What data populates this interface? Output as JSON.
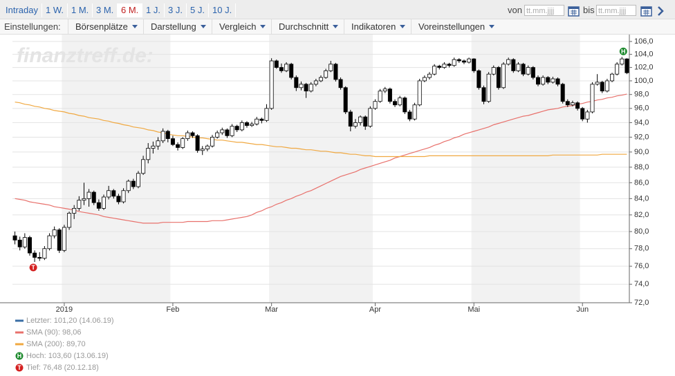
{
  "toolbar": {
    "ranges": [
      "Intraday",
      "1 W.",
      "1 M.",
      "3 M.",
      "6 M.",
      "1 J.",
      "3 J.",
      "5 J.",
      "10 J."
    ],
    "active_range_index": 4,
    "from_label": "von",
    "to_label": "bis",
    "date_placeholder": "tt.mm.jjjj",
    "settings_label": "Einstellungen:",
    "menus": [
      "Börsenplätze",
      "Darstellung",
      "Vergleich",
      "Durchschnitt",
      "Indikatoren",
      "Voreinstellungen"
    ]
  },
  "chart_data": {
    "type": "candlestick",
    "watermark": "finanztreff.de:",
    "log": true,
    "grid": true,
    "up_color": "#ffffff",
    "down_color": "#000000",
    "shade_color": "#f2f2f2",
    "ylim": [
      72,
      106
    ],
    "yticks": [
      {
        "value": 72,
        "label": "72,0"
      },
      {
        "value": 74,
        "label": "74,0"
      },
      {
        "value": 76,
        "label": "76,0"
      },
      {
        "value": 78,
        "label": "78,0"
      },
      {
        "value": 80,
        "label": "80,0"
      },
      {
        "value": 82,
        "label": "82,0"
      },
      {
        "value": 84,
        "label": "84,0"
      },
      {
        "value": 86,
        "label": "86,0"
      },
      {
        "value": 88,
        "label": "88,0"
      },
      {
        "value": 90,
        "label": "90,0"
      },
      {
        "value": 92,
        "label": "92,0"
      },
      {
        "value": 94,
        "label": "94,0"
      },
      {
        "value": 96,
        "label": "96,0"
      },
      {
        "value": 98,
        "label": "98,0"
      },
      {
        "value": 100,
        "label": "100,0"
      },
      {
        "value": 102,
        "label": "102,0"
      },
      {
        "value": 104,
        "label": "104,0"
      },
      {
        "value": 106,
        "label": "106,0"
      }
    ],
    "categories": [
      null,
      null,
      null,
      null,
      null,
      null,
      null,
      null,
      null,
      null,
      "2019",
      null,
      null,
      null,
      null,
      null,
      null,
      null,
      null,
      null,
      null,
      null,
      null,
      null,
      null,
      null,
      null,
      null,
      null,
      null,
      null,
      null,
      "Feb",
      null,
      null,
      null,
      null,
      null,
      null,
      null,
      null,
      null,
      null,
      null,
      null,
      null,
      null,
      null,
      null,
      null,
      null,
      null,
      "Mar",
      null,
      null,
      null,
      null,
      null,
      null,
      null,
      null,
      null,
      null,
      null,
      null,
      null,
      null,
      null,
      null,
      null,
      null,
      null,
      null,
      "Apr",
      null,
      null,
      null,
      null,
      null,
      null,
      null,
      null,
      null,
      null,
      null,
      null,
      null,
      null,
      null,
      null,
      null,
      null,
      null,
      "Mai",
      null,
      null,
      null,
      null,
      null,
      null,
      null,
      null,
      null,
      null,
      null,
      null,
      null,
      null,
      null,
      null,
      null,
      null,
      null,
      null,
      null,
      "Jun",
      null,
      null,
      null,
      null,
      null,
      null,
      null,
      null,
      null
    ],
    "ohlc": [
      [
        79.5,
        80,
        78.5,
        79.0
      ],
      [
        79.0,
        79.4,
        77.8,
        78.2
      ],
      [
        78.2,
        79.8,
        78.0,
        79.3
      ],
      [
        79.3,
        79.5,
        77.2,
        77.5
      ],
      [
        77.5,
        77.8,
        76.48,
        77.0
      ],
      [
        77.0,
        77.6,
        76.6,
        76.9
      ],
      [
        76.9,
        78.3,
        76.7,
        78.0
      ],
      [
        78.0,
        79.8,
        77.8,
        79.5
      ],
      [
        79.5,
        80.6,
        79.2,
        80.2
      ],
      [
        80.2,
        80.4,
        77.5,
        77.8
      ],
      [
        77.8,
        80.8,
        77.6,
        80.5
      ],
      [
        80.5,
        82.4,
        80.2,
        82.2
      ],
      [
        82.2,
        83.2,
        81.5,
        82.8
      ],
      [
        82.8,
        84.3,
        82.5,
        83.8
      ],
      [
        83.8,
        86.0,
        83.2,
        84.0
      ],
      [
        84.0,
        85.2,
        83.0,
        84.8
      ],
      [
        84.8,
        85.0,
        83.2,
        83.5
      ],
      [
        83.5,
        83.9,
        82.5,
        82.8
      ],
      [
        82.8,
        84.5,
        82.6,
        84.2
      ],
      [
        84.2,
        85.6,
        83.9,
        85.0
      ],
      [
        85.0,
        85.2,
        84.0,
        84.3
      ],
      [
        84.3,
        84.6,
        83.3,
        83.6
      ],
      [
        83.6,
        85.3,
        83.4,
        85.0
      ],
      [
        85.0,
        86.4,
        84.7,
        86.2
      ],
      [
        86.2,
        86.5,
        85.2,
        85.5
      ],
      [
        85.5,
        87.5,
        85.3,
        87.2
      ],
      [
        87.2,
        89.5,
        87.0,
        89.0
      ],
      [
        89.0,
        91.2,
        88.5,
        90.5
      ],
      [
        90.5,
        91.4,
        89.8,
        90.8
      ],
      [
        90.8,
        92.0,
        90.3,
        91.5
      ],
      [
        91.5,
        93.2,
        91.2,
        92.8
      ],
      [
        92.8,
        93.0,
        91.3,
        91.8
      ],
      [
        91.8,
        92.2,
        90.8,
        91.0
      ],
      [
        91.0,
        91.3,
        90.2,
        90.6
      ],
      [
        90.6,
        92.0,
        90.4,
        91.8
      ],
      [
        91.8,
        92.9,
        91.5,
        92.6
      ],
      [
        92.6,
        92.8,
        91.9,
        92.2
      ],
      [
        92.2,
        92.4,
        89.9,
        90.2
      ],
      [
        90.2,
        90.8,
        89.6,
        90.4
      ],
      [
        90.4,
        91.0,
        90.1,
        90.8
      ],
      [
        90.8,
        92.3,
        90.6,
        92.0
      ],
      [
        92.0,
        92.9,
        91.8,
        92.6
      ],
      [
        92.6,
        93.3,
        92.3,
        93.0
      ],
      [
        93.0,
        93.2,
        91.9,
        92.2
      ],
      [
        92.2,
        93.8,
        92.0,
        93.5
      ],
      [
        93.5,
        93.7,
        92.7,
        93.0
      ],
      [
        93.0,
        94.3,
        92.8,
        94.0
      ],
      [
        94.0,
        94.2,
        93.3,
        93.6
      ],
      [
        93.6,
        94.1,
        93.4,
        93.8
      ],
      [
        93.8,
        94.8,
        93.6,
        94.5
      ],
      [
        94.5,
        94.7,
        93.9,
        94.3
      ],
      [
        94.3,
        96.6,
        94.1,
        96.0
      ],
      [
        96.0,
        103.4,
        95.8,
        103.0
      ],
      [
        103.0,
        103.2,
        101.8,
        102.0
      ],
      [
        102.0,
        102.6,
        101.2,
        101.5
      ],
      [
        101.5,
        102.8,
        101.3,
        102.5
      ],
      [
        102.5,
        102.7,
        100.2,
        100.5
      ],
      [
        100.5,
        100.8,
        98.5,
        99.0
      ],
      [
        99.0,
        99.9,
        98.6,
        99.5
      ],
      [
        99.5,
        99.7,
        97.5,
        98.5
      ],
      [
        98.5,
        99.8,
        98.3,
        99.5
      ],
      [
        99.5,
        100.3,
        99.2,
        100.0
      ],
      [
        100.0,
        100.8,
        99.8,
        100.5
      ],
      [
        100.5,
        101.8,
        100.3,
        101.5
      ],
      [
        101.5,
        103.0,
        101.3,
        102.5
      ],
      [
        102.5,
        102.7,
        99.9,
        100.2
      ],
      [
        100.2,
        100.5,
        98.7,
        99.0
      ],
      [
        99.0,
        99.2,
        95.2,
        95.5
      ],
      [
        95.5,
        95.8,
        92.8,
        93.5
      ],
      [
        93.5,
        94.5,
        93.2,
        94.0
      ],
      [
        94.0,
        95.0,
        93.6,
        94.8
      ],
      [
        94.8,
        95.0,
        93.0,
        93.5
      ],
      [
        93.5,
        96.3,
        93.3,
        96.0
      ],
      [
        96.0,
        97.3,
        95.8,
        97.0
      ],
      [
        97.0,
        98.8,
        96.8,
        98.5
      ],
      [
        98.5,
        99.1,
        98.2,
        98.8
      ],
      [
        98.8,
        99.0,
        96.7,
        97.0
      ],
      [
        97.0,
        97.3,
        96.2,
        96.5
      ],
      [
        96.5,
        97.8,
        96.3,
        97.5
      ],
      [
        97.5,
        97.7,
        95.2,
        95.5
      ],
      [
        95.5,
        95.8,
        94.2,
        94.5
      ],
      [
        94.5,
        96.8,
        94.3,
        96.5
      ],
      [
        96.5,
        100.3,
        96.3,
        100.0
      ],
      [
        100.0,
        100.8,
        99.8,
        100.5
      ],
      [
        100.5,
        101.3,
        100.2,
        101.0
      ],
      [
        101.0,
        102.5,
        100.8,
        102.2
      ],
      [
        102.2,
        102.4,
        101.7,
        102.0
      ],
      [
        102.0,
        102.8,
        101.8,
        102.5
      ],
      [
        102.5,
        102.7,
        102.0,
        102.3
      ],
      [
        102.3,
        103.5,
        102.1,
        103.2
      ],
      [
        103.2,
        103.4,
        102.7,
        103.0
      ],
      [
        103.0,
        103.2,
        102.5,
        102.8
      ],
      [
        102.8,
        103.5,
        102.6,
        103.3
      ],
      [
        103.3,
        103.4,
        101.2,
        101.5
      ],
      [
        101.5,
        101.7,
        98.7,
        99.0
      ],
      [
        99.0,
        99.3,
        96.6,
        97.0
      ],
      [
        97.0,
        101.3,
        96.8,
        101.0
      ],
      [
        101.0,
        102.3,
        100.8,
        102.0
      ],
      [
        102.0,
        102.2,
        98.7,
        99.0
      ],
      [
        99.0,
        102.8,
        98.8,
        102.5
      ],
      [
        102.5,
        103.5,
        102.3,
        103.2
      ],
      [
        103.2,
        103.4,
        101.2,
        101.5
      ],
      [
        101.5,
        102.8,
        101.3,
        102.5
      ],
      [
        102.5,
        102.7,
        100.7,
        101.0
      ],
      [
        101.0,
        102.3,
        100.8,
        102.0
      ],
      [
        102.0,
        102.2,
        100.2,
        100.5
      ],
      [
        100.5,
        100.8,
        99.2,
        99.5
      ],
      [
        99.5,
        100.8,
        99.3,
        100.5
      ],
      [
        100.5,
        100.7,
        99.5,
        99.8
      ],
      [
        99.8,
        100.6,
        99.6,
        100.3
      ],
      [
        100.3,
        100.5,
        99.2,
        99.5
      ],
      [
        99.5,
        99.7,
        96.7,
        97.0
      ],
      [
        97.0,
        97.3,
        96.2,
        96.5
      ],
      [
        96.5,
        97.1,
        96.3,
        96.8
      ],
      [
        96.8,
        97.0,
        95.7,
        96.0
      ],
      [
        96.0,
        96.2,
        94.2,
        94.5
      ],
      [
        94.5,
        95.8,
        94.0,
        95.5
      ],
      [
        95.5,
        99.8,
        95.3,
        99.5
      ],
      [
        99.5,
        101.0,
        99.3,
        99.8
      ],
      [
        99.8,
        100.0,
        98.2,
        98.5
      ],
      [
        98.5,
        100.3,
        98.3,
        100.0
      ],
      [
        100.0,
        101.2,
        99.8,
        101.0
      ],
      [
        101.0,
        102.8,
        100.8,
        102.5
      ],
      [
        102.5,
        103.6,
        102.3,
        103.3
      ],
      [
        103.3,
        103.4,
        101.0,
        101.2
      ]
    ],
    "series": [
      {
        "name": "SMA (90): 98,06",
        "color": "#e8706b",
        "values": [
          84.0,
          83.9,
          83.8,
          83.6,
          83.5,
          83.4,
          83.3,
          83.2,
          83.0,
          82.9,
          82.8,
          82.7,
          82.6,
          82.4,
          82.3,
          82.2,
          82.1,
          82.0,
          81.8,
          81.7,
          81.6,
          81.5,
          81.4,
          81.3,
          81.2,
          81.1,
          81.0,
          81.0,
          81.0,
          81.0,
          81.1,
          81.1,
          81.1,
          81.1,
          81.1,
          81.2,
          81.2,
          81.2,
          81.2,
          81.2,
          81.3,
          81.3,
          81.3,
          81.4,
          81.5,
          81.6,
          81.7,
          81.8,
          82.0,
          82.3,
          82.5,
          82.8,
          83.0,
          83.3,
          83.5,
          83.8,
          84.0,
          84.3,
          84.5,
          84.8,
          85.0,
          85.3,
          85.6,
          85.9,
          86.2,
          86.5,
          86.8,
          87.0,
          87.2,
          87.4,
          87.7,
          87.9,
          88.1,
          88.3,
          88.5,
          88.7,
          88.9,
          89.2,
          89.4,
          89.6,
          89.8,
          90.0,
          90.2,
          90.4,
          90.6,
          90.9,
          91.1,
          91.4,
          91.6,
          91.9,
          92.1,
          92.4,
          92.6,
          92.8,
          93.0,
          93.2,
          93.4,
          93.7,
          93.9,
          94.1,
          94.3,
          94.5,
          94.7,
          94.9,
          95.0,
          95.2,
          95.4,
          95.6,
          95.8,
          95.9,
          96.0,
          96.2,
          96.3,
          96.4,
          96.6,
          96.7,
          96.9,
          97.0,
          97.2,
          97.3,
          97.5,
          97.6,
          97.8,
          97.9,
          98.06
        ]
      },
      {
        "name": "SMA (200): 89,70",
        "color": "#f0a840",
        "values": [
          96.9,
          96.8,
          96.6,
          96.5,
          96.3,
          96.2,
          96.0,
          95.9,
          95.7,
          95.6,
          95.5,
          95.3,
          95.2,
          95.0,
          94.9,
          94.7,
          94.6,
          94.5,
          94.3,
          94.2,
          94.0,
          93.9,
          93.7,
          93.6,
          93.4,
          93.3,
          93.2,
          93.0,
          92.9,
          92.7,
          92.6,
          92.4,
          92.3,
          92.2,
          92.2,
          92.1,
          92.0,
          91.9,
          91.9,
          91.8,
          91.7,
          91.6,
          91.6,
          91.5,
          91.4,
          91.3,
          91.3,
          91.2,
          91.1,
          91.0,
          91.0,
          90.9,
          90.8,
          90.7,
          90.7,
          90.6,
          90.5,
          90.5,
          90.4,
          90.3,
          90.3,
          90.2,
          90.1,
          90.1,
          90.0,
          89.9,
          89.9,
          89.8,
          89.7,
          89.7,
          89.6,
          89.5,
          89.5,
          89.4,
          89.4,
          89.4,
          89.4,
          89.4,
          89.4,
          89.4,
          89.4,
          89.4,
          89.4,
          89.4,
          89.5,
          89.5,
          89.5,
          89.5,
          89.5,
          89.5,
          89.5,
          89.5,
          89.5,
          89.5,
          89.5,
          89.5,
          89.5,
          89.5,
          89.5,
          89.5,
          89.5,
          89.5,
          89.5,
          89.5,
          89.5,
          89.5,
          89.5,
          89.5,
          89.5,
          89.6,
          89.6,
          89.6,
          89.6,
          89.6,
          89.6,
          89.6,
          89.6,
          89.6,
          89.6,
          89.7,
          89.7,
          89.7,
          89.7,
          89.7,
          89.7
        ]
      }
    ],
    "last": {
      "label": "Letzter: 101,20 (14.06.19)",
      "color": "#3a6ea5"
    },
    "high_marker": {
      "letter": "H",
      "label": "Hoch: 103,60 (13.06.19)",
      "color": "#1e8a2e"
    },
    "low_marker": {
      "letter": "T",
      "label": "Tief: 76,48 (20.12.18)",
      "color": "#d42020"
    }
  }
}
